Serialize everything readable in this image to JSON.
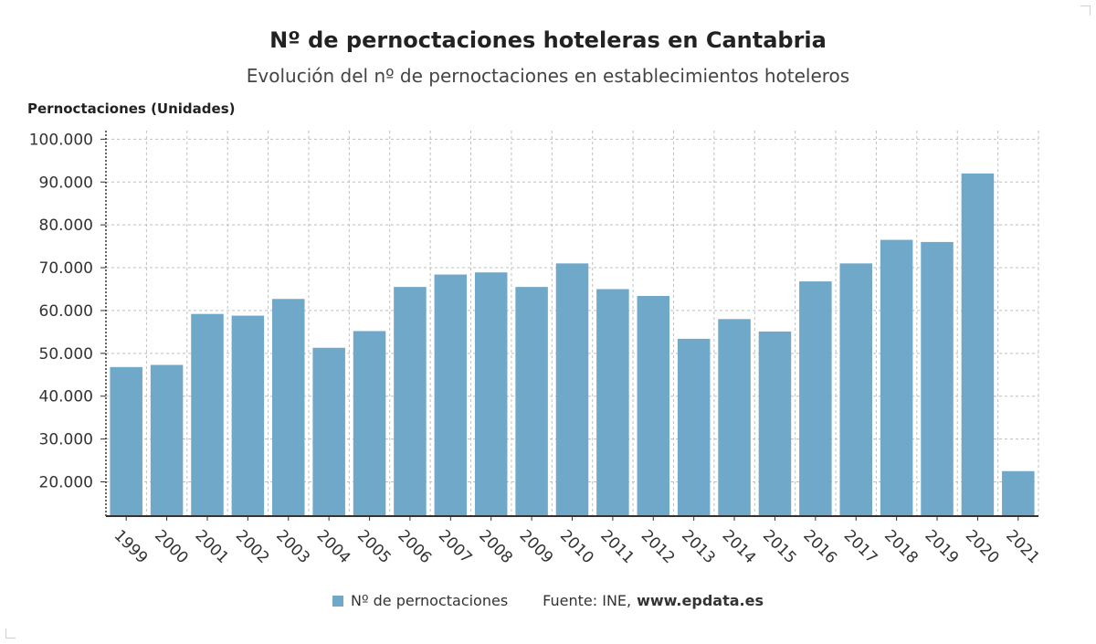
{
  "header": {
    "title": "Nº de pernoctaciones hoteleras en Cantabria",
    "subtitle": "Evolución del nº de pernoctaciones en establecimientos hoteleros",
    "ylabel": "Pernoctaciones (Unidades)"
  },
  "legend": {
    "series_label": "Nº de pernoctaciones",
    "source_label": "Fuente: INE,",
    "source_site": "www.epdata.es"
  },
  "colors": {
    "bar": "#6fa8c9",
    "grid": "#bfbfbf",
    "axis": "#333333"
  },
  "chart_data": {
    "type": "bar",
    "title": "Nº de pernoctaciones hoteleras en Cantabria",
    "subtitle": "Evolución del nº de pernoctaciones en establecimientos hoteleros",
    "ylabel": "Pernoctaciones (Unidades)",
    "xlabel": "",
    "ylim": [
      12000,
      102000
    ],
    "yticks": [
      20000,
      30000,
      40000,
      50000,
      60000,
      70000,
      80000,
      90000,
      100000
    ],
    "ytick_labels": [
      "20.000",
      "30.000",
      "40.000",
      "50.000",
      "60.000",
      "70.000",
      "80.000",
      "90.000",
      "100.000"
    ],
    "grid": true,
    "legend_position": "bottom",
    "categories": [
      "1999",
      "2000",
      "2001",
      "2002",
      "2003",
      "2004",
      "2005",
      "2006",
      "2007",
      "2008",
      "2009",
      "2010",
      "2011",
      "2012",
      "2013",
      "2014",
      "2015",
      "2016",
      "2017",
      "2018",
      "2019",
      "2020",
      "2021"
    ],
    "series": [
      {
        "name": "Nº de pernoctaciones",
        "values": [
          46800,
          47300,
          59200,
          58800,
          62700,
          51300,
          55200,
          65500,
          68400,
          68900,
          65500,
          71000,
          65000,
          63400,
          53400,
          58000,
          55100,
          66800,
          71000,
          76500,
          76000,
          92000,
          22500
        ]
      }
    ]
  }
}
